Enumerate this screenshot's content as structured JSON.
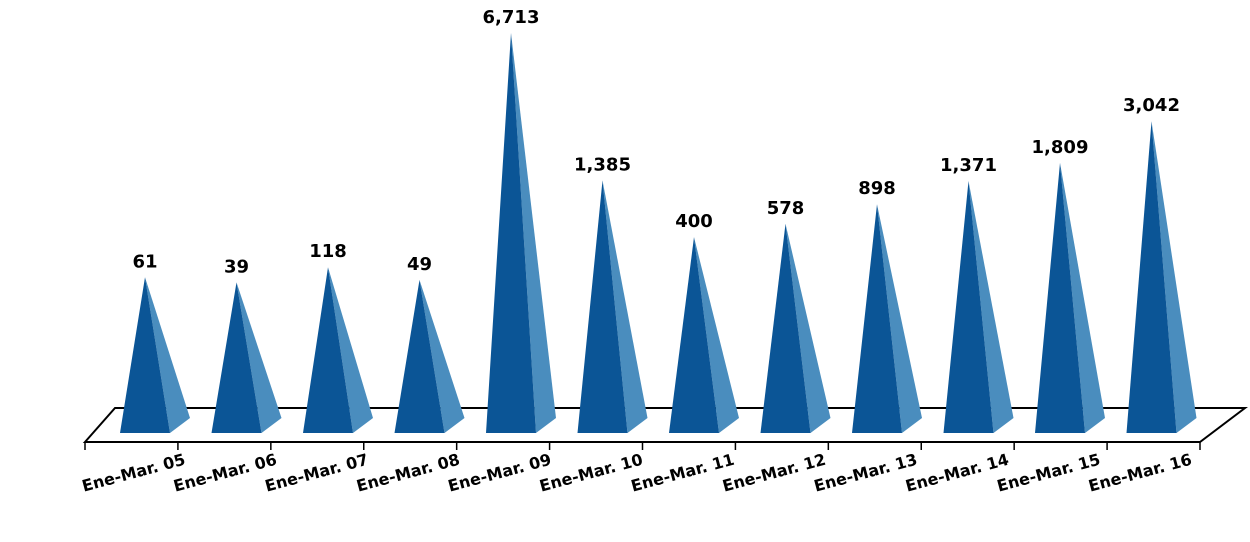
{
  "chart_data": {
    "type": "bar",
    "style": "3d-pyramid",
    "categories": [
      "Ene-Mar. 05",
      "Ene-Mar. 06",
      "Ene-Mar. 07",
      "Ene-Mar. 08",
      "Ene-Mar. 09",
      "Ene-Mar. 10",
      "Ene-Mar. 11",
      "Ene-Mar. 12",
      "Ene-Mar. 13",
      "Ene-Mar. 14",
      "Ene-Mar. 15",
      "Ene-Mar. 16"
    ],
    "values": [
      61,
      39,
      118,
      49,
      6713,
      1385,
      400,
      578,
      898,
      1371,
      1809,
      3042
    ],
    "value_labels": [
      "61",
      "39",
      "118",
      "49",
      "6,713",
      "1,385",
      "400",
      "578",
      "898",
      "1,371",
      "1,809",
      "3,042"
    ],
    "title": "",
    "xlabel": "",
    "ylabel": "",
    "grid": false,
    "legend": "none",
    "colors": {
      "front": "#0B5596",
      "side": "#4A8DBE",
      "floor_line": "#000000"
    }
  }
}
